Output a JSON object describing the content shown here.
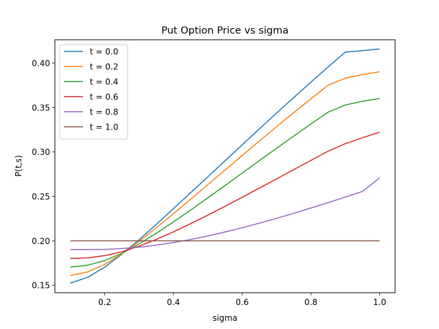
{
  "chart_data": {
    "type": "line",
    "title": "Put Option Price vs sigma",
    "xlabel": "sigma",
    "ylabel": "P(t,s)",
    "xlim": [
      0.055,
      1.045
    ],
    "ylim": [
      0.1417,
      0.4262
    ],
    "xticks": [
      0.2,
      0.4,
      0.6,
      0.8,
      1.0
    ],
    "xtick_labels": [
      "0.2",
      "0.4",
      "0.6",
      "0.8",
      "1.0"
    ],
    "yticks": [
      0.15,
      0.2,
      0.25,
      0.3,
      0.35,
      0.4
    ],
    "ytick_labels": [
      "0.15",
      "0.20",
      "0.25",
      "0.30",
      "0.35",
      "0.40"
    ],
    "grid": false,
    "legend_position": "upper-left",
    "series": [
      {
        "name": "t = 0.0",
        "color": "#1f77b4",
        "x": [
          0.1,
          0.15,
          0.2,
          0.25,
          0.3,
          0.35,
          0.4,
          0.45,
          0.5,
          0.55,
          0.6,
          0.65,
          0.7,
          0.75,
          0.8,
          0.85,
          0.9,
          0.95,
          1.0
        ],
        "y": [
          0.1525,
          0.1589,
          0.1704,
          0.185,
          0.2012,
          0.2185,
          0.2362,
          0.2541,
          0.272,
          0.29,
          0.308,
          0.3259,
          0.3437,
          0.3612,
          0.3785,
          0.3956,
          0.4123,
          0.414,
          0.4158
        ]
      },
      {
        "name": "t = 0.2",
        "color": "#ff7f0e",
        "x": [
          0.1,
          0.15,
          0.2,
          0.25,
          0.3,
          0.35,
          0.4,
          0.45,
          0.5,
          0.55,
          0.6,
          0.65,
          0.7,
          0.75,
          0.8,
          0.85,
          0.9,
          0.95,
          1.0
        ],
        "y": [
          0.161,
          0.165,
          0.1735,
          0.1853,
          0.1993,
          0.2147,
          0.2306,
          0.2468,
          0.2632,
          0.2796,
          0.296,
          0.3123,
          0.3283,
          0.3442,
          0.3597,
          0.375,
          0.383,
          0.387,
          0.3902
        ]
      },
      {
        "name": "t = 0.4",
        "color": "#2ca02c",
        "x": [
          0.1,
          0.15,
          0.2,
          0.25,
          0.3,
          0.35,
          0.4,
          0.45,
          0.5,
          0.55,
          0.6,
          0.65,
          0.7,
          0.75,
          0.8,
          0.85,
          0.9,
          0.95,
          1.0
        ],
        "y": [
          0.1705,
          0.1725,
          0.1778,
          0.186,
          0.1965,
          0.2085,
          0.2213,
          0.2346,
          0.2484,
          0.2622,
          0.2762,
          0.2902,
          0.3041,
          0.3179,
          0.3315,
          0.3448,
          0.3528,
          0.357,
          0.3602
        ]
      },
      {
        "name": "t = 0.6",
        "color": "#d62728",
        "x": [
          0.1,
          0.15,
          0.2,
          0.25,
          0.3,
          0.35,
          0.4,
          0.45,
          0.5,
          0.55,
          0.6,
          0.65,
          0.7,
          0.75,
          0.8,
          0.85,
          0.9,
          0.95,
          1.0
        ],
        "y": [
          0.1802,
          0.1808,
          0.1833,
          0.1878,
          0.194,
          0.2016,
          0.2101,
          0.2193,
          0.2289,
          0.2388,
          0.249,
          0.2593,
          0.2697,
          0.2801,
          0.2905,
          0.3008,
          0.3093,
          0.316,
          0.3222
        ]
      },
      {
        "name": "t = 0.8",
        "color": "#9467bd",
        "x": [
          0.1,
          0.15,
          0.2,
          0.25,
          0.3,
          0.35,
          0.4,
          0.45,
          0.5,
          0.55,
          0.6,
          0.65,
          0.7,
          0.75,
          0.8,
          0.85,
          0.9,
          0.95,
          1.0
        ],
        "y": [
          0.1901,
          0.1901,
          0.1904,
          0.1913,
          0.1929,
          0.1952,
          0.1981,
          0.2015,
          0.2055,
          0.2099,
          0.2147,
          0.2199,
          0.2253,
          0.231,
          0.2369,
          0.243,
          0.2492,
          0.2555,
          0.2708
        ]
      },
      {
        "name": "t = 1.0",
        "color": "#8c564b",
        "x": [
          0.1,
          1.0
        ],
        "y": [
          0.2,
          0.2
        ]
      }
    ]
  }
}
